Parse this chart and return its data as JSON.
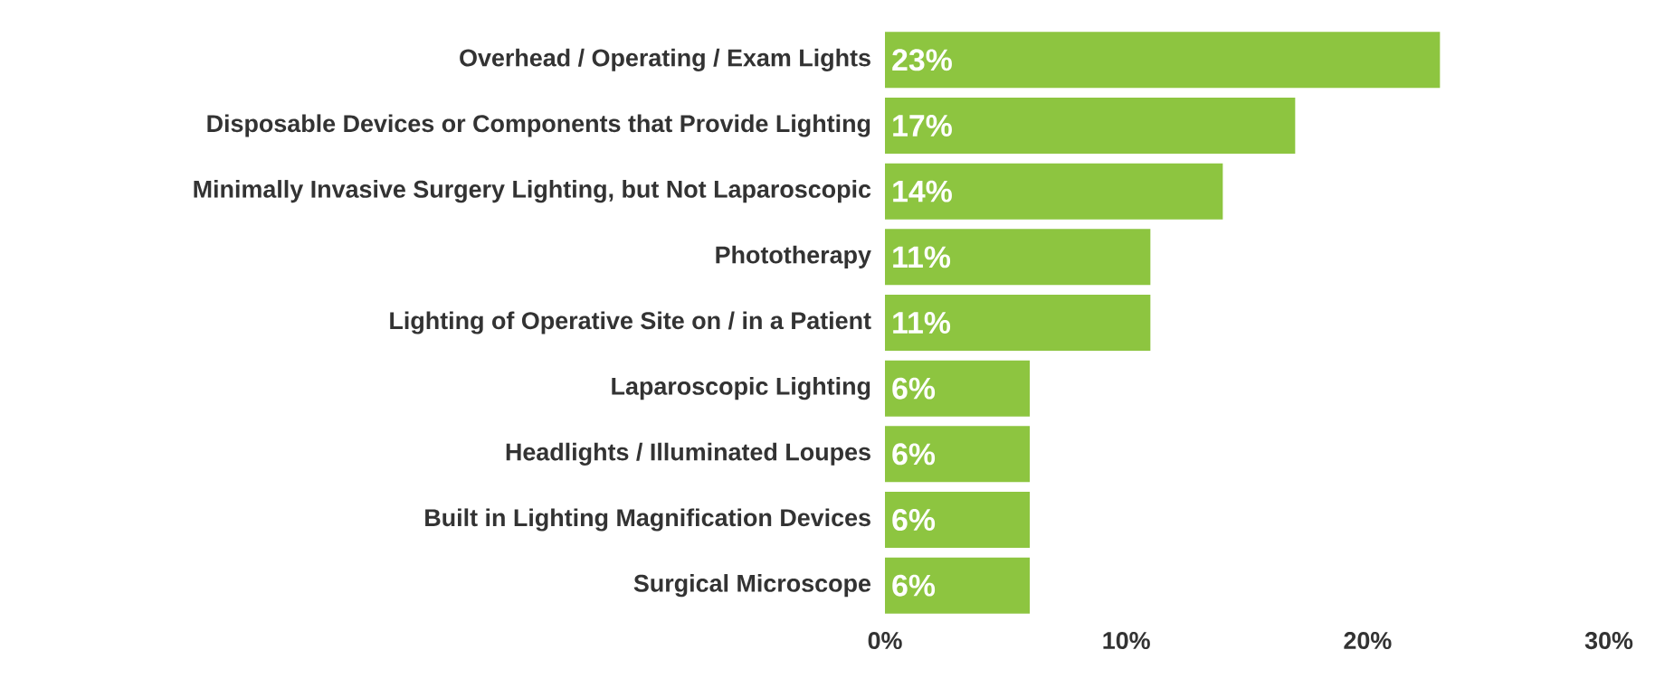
{
  "chart_data": {
    "type": "bar",
    "orientation": "horizontal",
    "categories": [
      "Overhead / Operating / Exam Lights",
      "Disposable Devices or Components that Provide Lighting",
      "Minimally Invasive Surgery Lighting, but Not Laparoscopic",
      "Phototherapy",
      "Lighting of Operative Site on / in a Patient",
      "Laparoscopic Lighting",
      "Headlights / Illuminated Loupes",
      "Built in Lighting Magnification Devices",
      "Surgical Microscope"
    ],
    "values": [
      23,
      17,
      14,
      11,
      11,
      6,
      6,
      6,
      6
    ],
    "value_labels": [
      "23%",
      "17%",
      "14%",
      "11%",
      "11%",
      "6%",
      "6%",
      "6%",
      "6%"
    ],
    "color": "#8dc540",
    "xlim": [
      0,
      30
    ],
    "xticks": [
      {
        "value": 0,
        "label": "0%"
      },
      {
        "value": 10,
        "label": "10%"
      },
      {
        "value": 20,
        "label": "20%"
      },
      {
        "value": 30,
        "label": "30%"
      }
    ],
    "grid": false
  }
}
